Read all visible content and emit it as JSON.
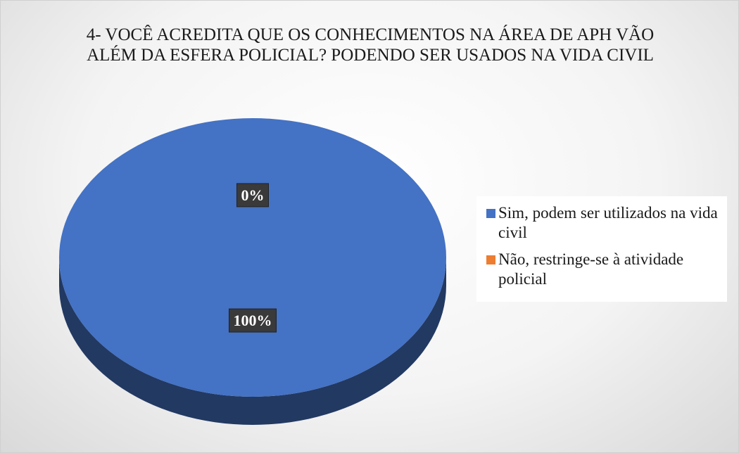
{
  "chart_data": {
    "type": "pie",
    "title": "4- VOCÊ ACREDITA QUE OS CONHECIMENTOS NA ÁREA DE APH VÃO ALÉM DA ESFERA POLICIAL? PODENDO SER USADOS NA VIDA CIVIL",
    "categories": [
      "Sim, podem ser utilizados na vida civil",
      "Não, restringe-se à atividade policial"
    ],
    "values": [
      100,
      0
    ],
    "value_labels": [
      "100%",
      "0%"
    ],
    "colors": [
      "#4472c4",
      "#ed7d31"
    ],
    "legend": "right"
  }
}
